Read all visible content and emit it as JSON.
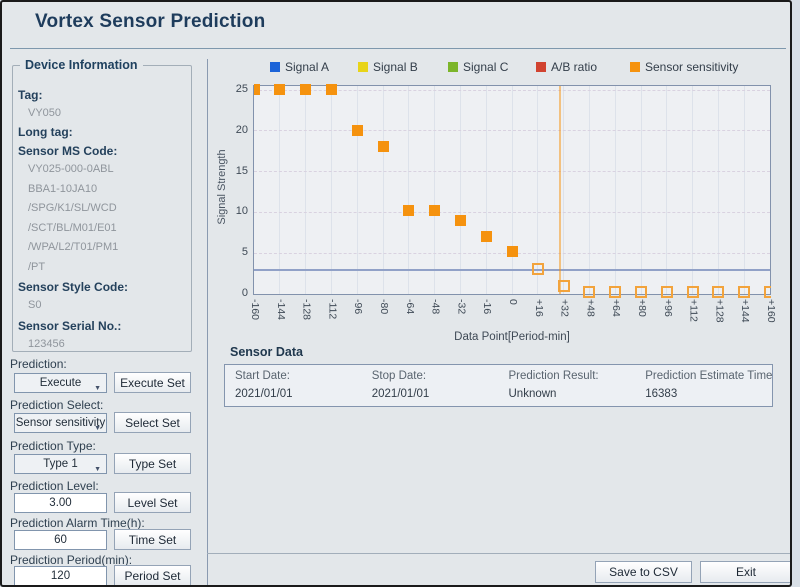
{
  "window": {
    "title": "Vortex Sensor Prediction"
  },
  "device_info": {
    "box_title": "Device Information",
    "fields": [
      {
        "label": "Tag:",
        "values": [
          "VY050"
        ]
      },
      {
        "label": "Long tag:",
        "values": []
      },
      {
        "label": "Sensor MS Code:",
        "values": [
          "VY025-000-0ABL",
          "BBA1-10JA10",
          "/SPG/K1/SL/WCD",
          "/SCT/BL/M01/E01",
          "/WPA/L2/T01/PM1",
          "/PT"
        ]
      },
      {
        "label": "Sensor Style Code:",
        "values": [
          "S0"
        ]
      },
      {
        "label": "Sensor Serial No.:",
        "values": [
          "123456"
        ]
      }
    ]
  },
  "controls": [
    {
      "label": "Prediction:",
      "field_type": "select",
      "value": "Execute",
      "button": "Execute Set"
    },
    {
      "label": "Prediction Select:",
      "field_type": "select",
      "value": "Sensor sensitivity",
      "button": "Select Set"
    },
    {
      "label": "Prediction Type:",
      "field_type": "select",
      "value": "Type 1",
      "button": "Type Set"
    },
    {
      "label": "Prediction Level:",
      "field_type": "input",
      "value": "3.00",
      "button": "Level Set"
    },
    {
      "label": "Prediction Alarm Time(h):",
      "field_type": "input",
      "value": "60",
      "button": "Time Set"
    },
    {
      "label": "Prediction Period(min):",
      "field_type": "input",
      "value": "120",
      "button": "Period Set"
    }
  ],
  "chart_data": {
    "type": "scatter",
    "xlabel": "Data Point[Period-min]",
    "ylabel": "Signal Strength",
    "xlim": [
      -160,
      160
    ],
    "ylim": [
      0,
      25.5
    ],
    "grid": true,
    "legend_position": "top",
    "y_ticks": [
      0,
      5,
      10,
      15,
      20,
      25
    ],
    "x_ticks": [
      "-160",
      "-144",
      "-128",
      "-112",
      "-96",
      "-80",
      "-64",
      "-48",
      "-32",
      "-16",
      "0",
      "+16",
      "+32",
      "+48",
      "+64",
      "+80",
      "+96",
      "+112",
      "+128",
      "+144",
      "+160"
    ],
    "legend": [
      {
        "name": "Signal A",
        "color": "#1b63d8"
      },
      {
        "name": "Signal B",
        "color": "#e8d419"
      },
      {
        "name": "Signal C",
        "color": "#7cb52a"
      },
      {
        "name": "A/B ratio",
        "color": "#d14330"
      },
      {
        "name": "Sensor sensitivity",
        "color": "#f5920e"
      }
    ],
    "series": [
      {
        "name": "Sensor sensitivity",
        "color": "#f5920e",
        "hollow_color": "#f2a33c",
        "points": [
          {
            "x": -160,
            "y": 25.1,
            "filled": true
          },
          {
            "x": -144,
            "y": 25.1,
            "filled": true
          },
          {
            "x": -128,
            "y": 25.1,
            "filled": true
          },
          {
            "x": -112,
            "y": 25.1,
            "filled": true
          },
          {
            "x": -96,
            "y": 20.1,
            "filled": true
          },
          {
            "x": -80,
            "y": 18.1,
            "filled": true
          },
          {
            "x": -64,
            "y": 10.2,
            "filled": true
          },
          {
            "x": -48,
            "y": 10.2,
            "filled": true
          },
          {
            "x": -32,
            "y": 9.0,
            "filled": true
          },
          {
            "x": -16,
            "y": 7.1,
            "filled": true
          },
          {
            "x": 0,
            "y": 5.2,
            "filled": true
          },
          {
            "x": 16,
            "y": 3.1,
            "filled": false
          },
          {
            "x": 32,
            "y": 1.0,
            "filled": false
          },
          {
            "x": 48,
            "y": 0.2,
            "filled": false
          },
          {
            "x": 64,
            "y": 0.2,
            "filled": false
          },
          {
            "x": 80,
            "y": 0.2,
            "filled": false
          },
          {
            "x": 96,
            "y": 0.2,
            "filled": false
          },
          {
            "x": 112,
            "y": 0.2,
            "filled": false
          },
          {
            "x": 128,
            "y": 0.2,
            "filled": false
          },
          {
            "x": 144,
            "y": 0.2,
            "filled": false
          },
          {
            "x": 160,
            "y": 0.2,
            "filled": false
          }
        ]
      }
    ],
    "threshold_line": {
      "y": 3.0,
      "color": "#91a1c7"
    },
    "marker_line": {
      "x": 30,
      "color": "#f5920e"
    }
  },
  "sensor_data": {
    "heading": "Sensor Data",
    "columns": [
      {
        "label": "Start Date:",
        "value": "2021/01/01"
      },
      {
        "label": "Stop Date:",
        "value": "2021/01/01"
      },
      {
        "label": "Prediction Result:",
        "value": "Unknown"
      },
      {
        "label": "Prediction Estimate Time(h):",
        "value": "16383"
      }
    ]
  },
  "footer": {
    "save_button": "Save to CSV",
    "exit_button": "Exit"
  }
}
